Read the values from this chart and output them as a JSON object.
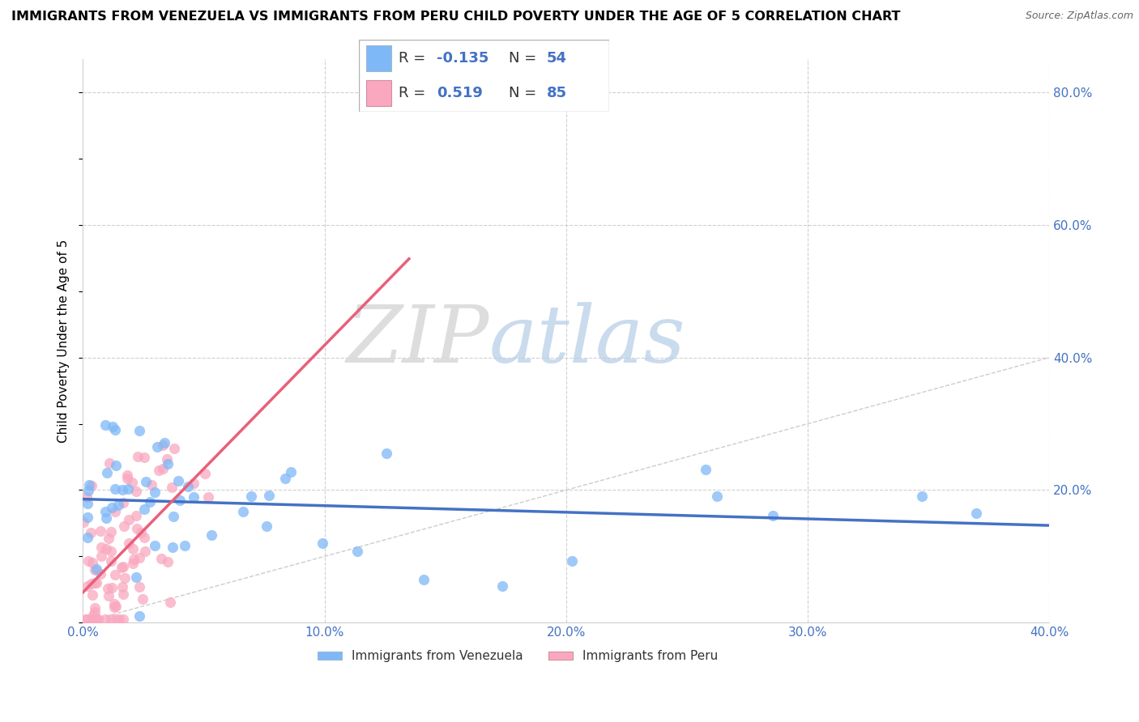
{
  "title": "IMMIGRANTS FROM VENEZUELA VS IMMIGRANTS FROM PERU CHILD POVERTY UNDER THE AGE OF 5 CORRELATION CHART",
  "source": "Source: ZipAtlas.com",
  "ylabel": "Child Poverty Under the Age of 5",
  "xlim": [
    0.0,
    0.4
  ],
  "ylim": [
    0.0,
    0.85
  ],
  "xticks": [
    0.0,
    0.1,
    0.2,
    0.3,
    0.4
  ],
  "xtick_labels": [
    "0.0%",
    "10.0%",
    "20.0%",
    "30.0%",
    "40.0%"
  ],
  "yticks": [
    0.2,
    0.4,
    0.6,
    0.8
  ],
  "ytick_labels": [
    "20.0%",
    "40.0%",
    "60.0%",
    "80.0%"
  ],
  "venezuela_color": "#7eb8f7",
  "venezuela_edge": "#5a9fd4",
  "peru_color": "#f9a8c0",
  "peru_edge": "#e07090",
  "venezuela_line_color": "#4472c4",
  "peru_line_color": "#e8607a",
  "venezuela_R": -0.135,
  "venezuela_N": 54,
  "peru_R": 0.519,
  "peru_N": 85,
  "watermark_zip": "ZIP",
  "watermark_atlas": "atlas",
  "background_color": "#ffffff",
  "grid_color": "#d0d0d0",
  "axis_tick_color": "#4472c4",
  "legend_color": "#4472c4",
  "title_fontsize": 11.5,
  "label_fontsize": 11,
  "tick_fontsize": 11,
  "legend_fontsize": 13
}
